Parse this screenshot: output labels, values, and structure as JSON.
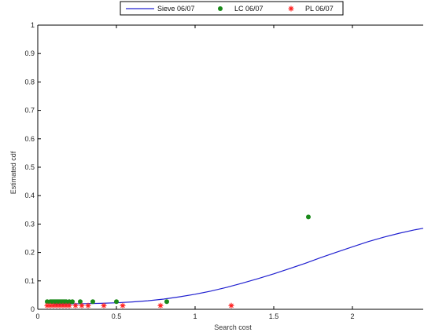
{
  "chart_data": {
    "type": "scatter",
    "xlabel": "Search cost",
    "ylabel": "Estimated cdf",
    "xlim": [
      0,
      2.45
    ],
    "ylim": [
      0,
      1
    ],
    "xticks": [
      0,
      0.5,
      1,
      1.5,
      2
    ],
    "xtick_labels": [
      "0",
      "0.5",
      "1",
      "1.5",
      "2"
    ],
    "yticks": [
      0,
      0.1,
      0.2,
      0.3,
      0.4,
      0.5,
      0.6,
      0.7,
      0.8,
      0.9,
      1
    ],
    "ytick_labels": [
      "0",
      "0.1",
      "0.2",
      "0.3",
      "0.4",
      "0.5",
      "0.6",
      "0.7",
      "0.8",
      "0.9",
      "1"
    ],
    "grid": false,
    "legend_position": "top-center outside",
    "series": [
      {
        "name": "Sieve 06/07",
        "kind": "line",
        "color": "#2020d0",
        "x": [
          0.1,
          0.2,
          0.3,
          0.4,
          0.5,
          0.6,
          0.7,
          0.8,
          0.9,
          1.0,
          1.1,
          1.2,
          1.3,
          1.4,
          1.5,
          1.6,
          1.7,
          1.8,
          1.9,
          2.0,
          2.1,
          2.2,
          2.3,
          2.4,
          2.45
        ],
        "y": [
          0.018,
          0.019,
          0.02,
          0.021,
          0.023,
          0.026,
          0.03,
          0.036,
          0.044,
          0.053,
          0.064,
          0.077,
          0.092,
          0.108,
          0.125,
          0.143,
          0.162,
          0.182,
          0.201,
          0.22,
          0.238,
          0.254,
          0.268,
          0.28,
          0.285
        ]
      },
      {
        "name": "LC 06/07",
        "kind": "scatter",
        "marker": "dot",
        "color": "#1a8a1a",
        "x": [
          0.06,
          0.08,
          0.09,
          0.1,
          0.11,
          0.12,
          0.13,
          0.14,
          0.15,
          0.16,
          0.17,
          0.18,
          0.2,
          0.22,
          0.27,
          0.35,
          0.5,
          0.82,
          1.72
        ],
        "y": [
          0.027,
          0.027,
          0.027,
          0.027,
          0.027,
          0.027,
          0.027,
          0.027,
          0.027,
          0.027,
          0.027,
          0.027,
          0.027,
          0.027,
          0.027,
          0.027,
          0.027,
          0.027,
          0.325
        ]
      },
      {
        "name": "PL 06/07",
        "kind": "scatter",
        "marker": "star",
        "color": "#ff2020",
        "x": [
          0.06,
          0.08,
          0.1,
          0.12,
          0.14,
          0.16,
          0.18,
          0.2,
          0.24,
          0.28,
          0.32,
          0.42,
          0.54,
          0.78,
          1.23
        ],
        "y": [
          0.013,
          0.013,
          0.013,
          0.013,
          0.013,
          0.013,
          0.013,
          0.013,
          0.013,
          0.013,
          0.013,
          0.013,
          0.013,
          0.013,
          0.013
        ]
      }
    ]
  }
}
